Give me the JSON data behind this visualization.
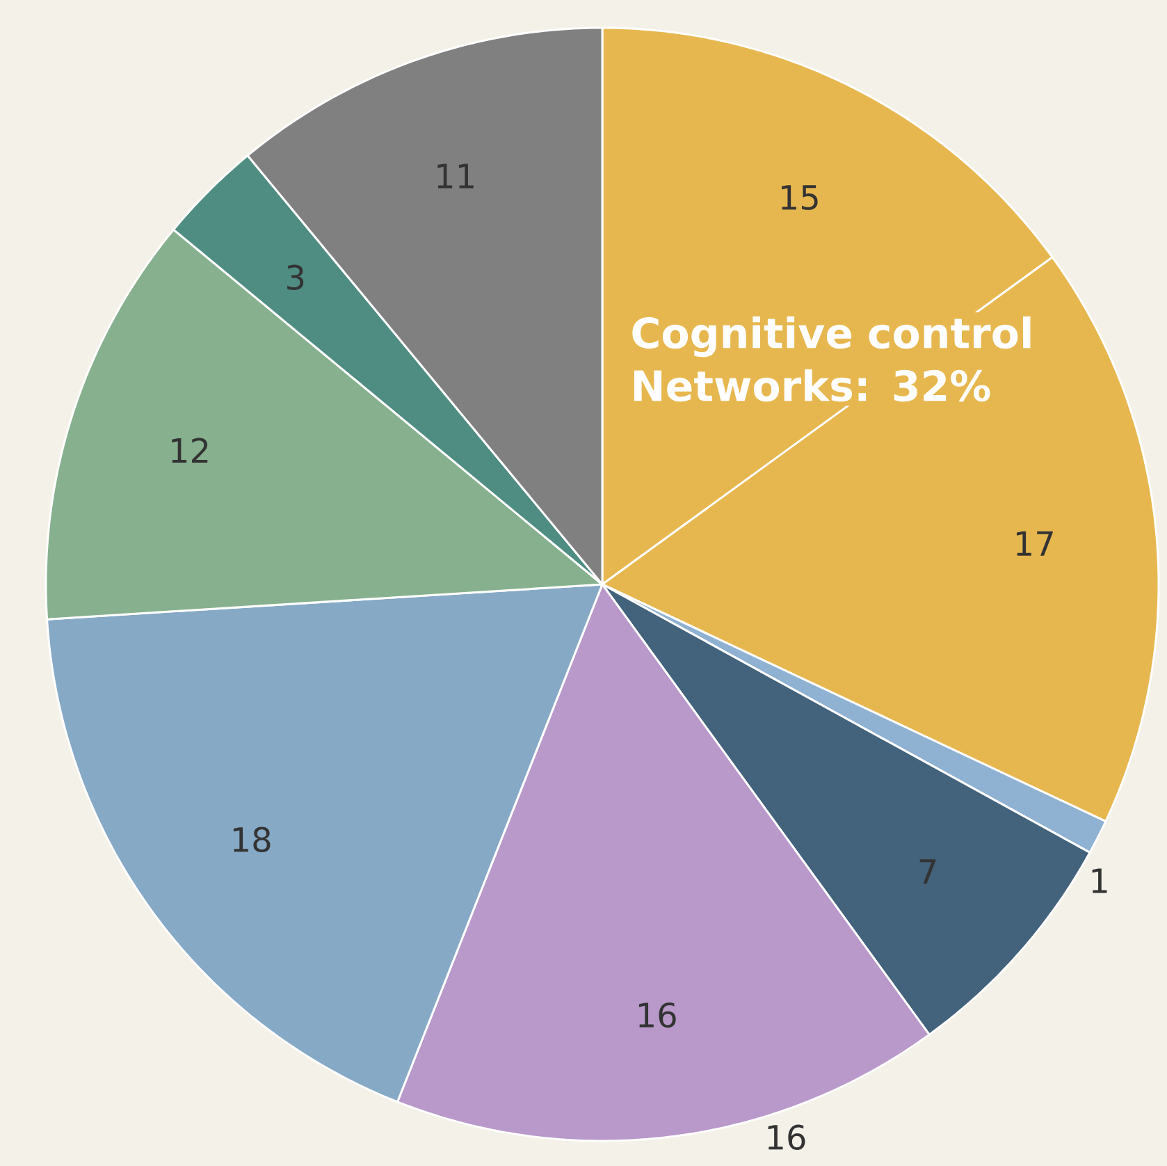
{
  "chart_data": {
    "type": "pie",
    "categories": [
      null,
      null,
      null,
      null,
      null,
      null,
      null,
      null,
      null
    ],
    "values": [
      15,
      17,
      1,
      7,
      16,
      18,
      12,
      3,
      11
    ],
    "colors": [
      "#e7b74f",
      "#e7b74f",
      "#8fb1d2",
      "#43627b",
      "#b899c9",
      "#86a9c6",
      "#87b08f",
      "#4f8d82",
      "#808080"
    ],
    "data_labels": true,
    "annotations": [
      "Cognitive control Networks: 32%",
      "16"
    ]
  }
}
